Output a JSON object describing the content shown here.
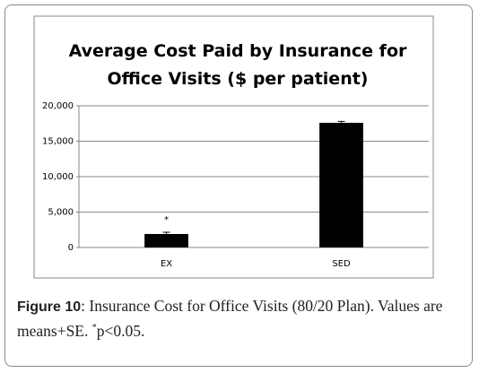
{
  "chart_data": {
    "type": "bar",
    "title": "Average Cost Paid by Insurance for Office Visits ($ per patient)",
    "categories": [
      "EX",
      "SED"
    ],
    "values": [
      1900,
      17600
    ],
    "errors": [
      250,
      200
    ],
    "color": "#000000",
    "annotation": "*",
    "ylim": [
      0,
      20000
    ],
    "yticks": [
      0,
      {
        "value": 5000,
        "label": "5,000"
      },
      {
        "value": 10000,
        "label": "10,000"
      },
      {
        "value": 15000,
        "label": "15,000"
      },
      {
        "value": 20000,
        "label": "20,000"
      }
    ],
    "grid": true
  },
  "caption": {
    "label": "Figure 10",
    "text": ": Insurance Cost for Office Visits (80/20 Plan). Values are means+SE. ",
    "superscript": "*",
    "tail": "p<0.05."
  }
}
